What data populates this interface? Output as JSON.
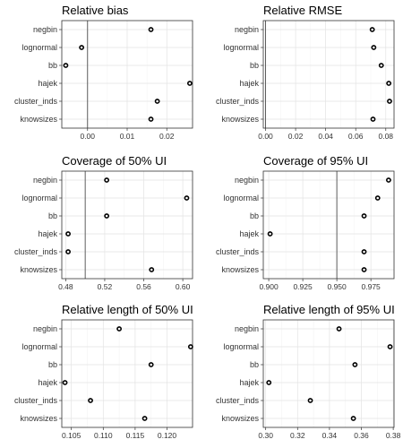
{
  "chart_data": [
    {
      "type": "scatter",
      "title": "Relative bias",
      "categories": [
        "negbin",
        "lognormal",
        "bb",
        "hajek",
        "cluster_inds",
        "knowsizes"
      ],
      "values": [
        0.016,
        -0.0015,
        -0.0055,
        0.0258,
        0.0176,
        0.016
      ],
      "xlim": [
        -0.0065,
        0.0265
      ],
      "xticks": [
        0.0,
        0.01,
        0.02
      ],
      "xtick_labels": [
        "0.00",
        "0.01",
        "0.02"
      ],
      "reference_line": 0,
      "grid": true
    },
    {
      "type": "scatter",
      "title": "Relative RMSE",
      "categories": [
        "negbin",
        "lognormal",
        "bb",
        "hajek",
        "cluster_inds",
        "knowsizes"
      ],
      "values": [
        0.071,
        0.072,
        0.077,
        0.082,
        0.0825,
        0.0715
      ],
      "xlim": [
        -0.0015,
        0.0855
      ],
      "xticks": [
        0.0,
        0.02,
        0.04,
        0.06,
        0.08
      ],
      "xtick_labels": [
        "0.00",
        "0.02",
        "0.04",
        "0.06",
        "0.08"
      ],
      "reference_line": 0,
      "grid": true
    },
    {
      "type": "scatter",
      "title": "Coverage of 50% UI",
      "categories": [
        "negbin",
        "lognormal",
        "bb",
        "hajek",
        "cluster_inds",
        "knowsizes"
      ],
      "values": [
        0.522,
        0.604,
        0.522,
        0.4825,
        0.4825,
        0.568
      ],
      "xlim": [
        0.476,
        0.61
      ],
      "xticks": [
        0.48,
        0.52,
        0.56,
        0.6
      ],
      "xtick_labels": [
        "0.48",
        "0.52",
        "0.56",
        "0.60"
      ],
      "reference_line": 0.5,
      "grid": true
    },
    {
      "type": "scatter",
      "title": "Coverage of 95% UI",
      "categories": [
        "negbin",
        "lognormal",
        "bb",
        "hajek",
        "cluster_inds",
        "knowsizes"
      ],
      "values": [
        0.988,
        0.98,
        0.97,
        0.901,
        0.97,
        0.97
      ],
      "xlim": [
        0.896,
        0.992
      ],
      "xticks": [
        0.9,
        0.925,
        0.95,
        0.975
      ],
      "xtick_labels": [
        "0.900",
        "0.925",
        "0.950",
        "0.975"
      ],
      "reference_line": 0.95,
      "grid": true
    },
    {
      "type": "scatter",
      "title": "Relative length of 50% UI",
      "categories": [
        "negbin",
        "lognormal",
        "bb",
        "hajek",
        "cluster_inds",
        "knowsizes"
      ],
      "values": [
        0.1125,
        0.1237,
        0.1175,
        0.104,
        0.108,
        0.1165
      ],
      "xlim": [
        0.1035,
        0.124
      ],
      "xticks": [
        0.105,
        0.11,
        0.115,
        0.12
      ],
      "xtick_labels": [
        "0.105",
        "0.110",
        "0.115",
        "0.120"
      ],
      "grid": true
    },
    {
      "type": "scatter",
      "title": "Relative length of 95% UI",
      "categories": [
        "negbin",
        "lognormal",
        "bb",
        "hajek",
        "cluster_inds",
        "knowsizes"
      ],
      "values": [
        0.346,
        0.378,
        0.356,
        0.302,
        0.328,
        0.355
      ],
      "xlim": [
        0.2985,
        0.3805
      ],
      "xticks": [
        0.3,
        0.32,
        0.34,
        0.36,
        0.38
      ],
      "xtick_labels": [
        "0.30",
        "0.32",
        "0.34",
        "0.36",
        "0.38"
      ],
      "grid": true
    }
  ]
}
